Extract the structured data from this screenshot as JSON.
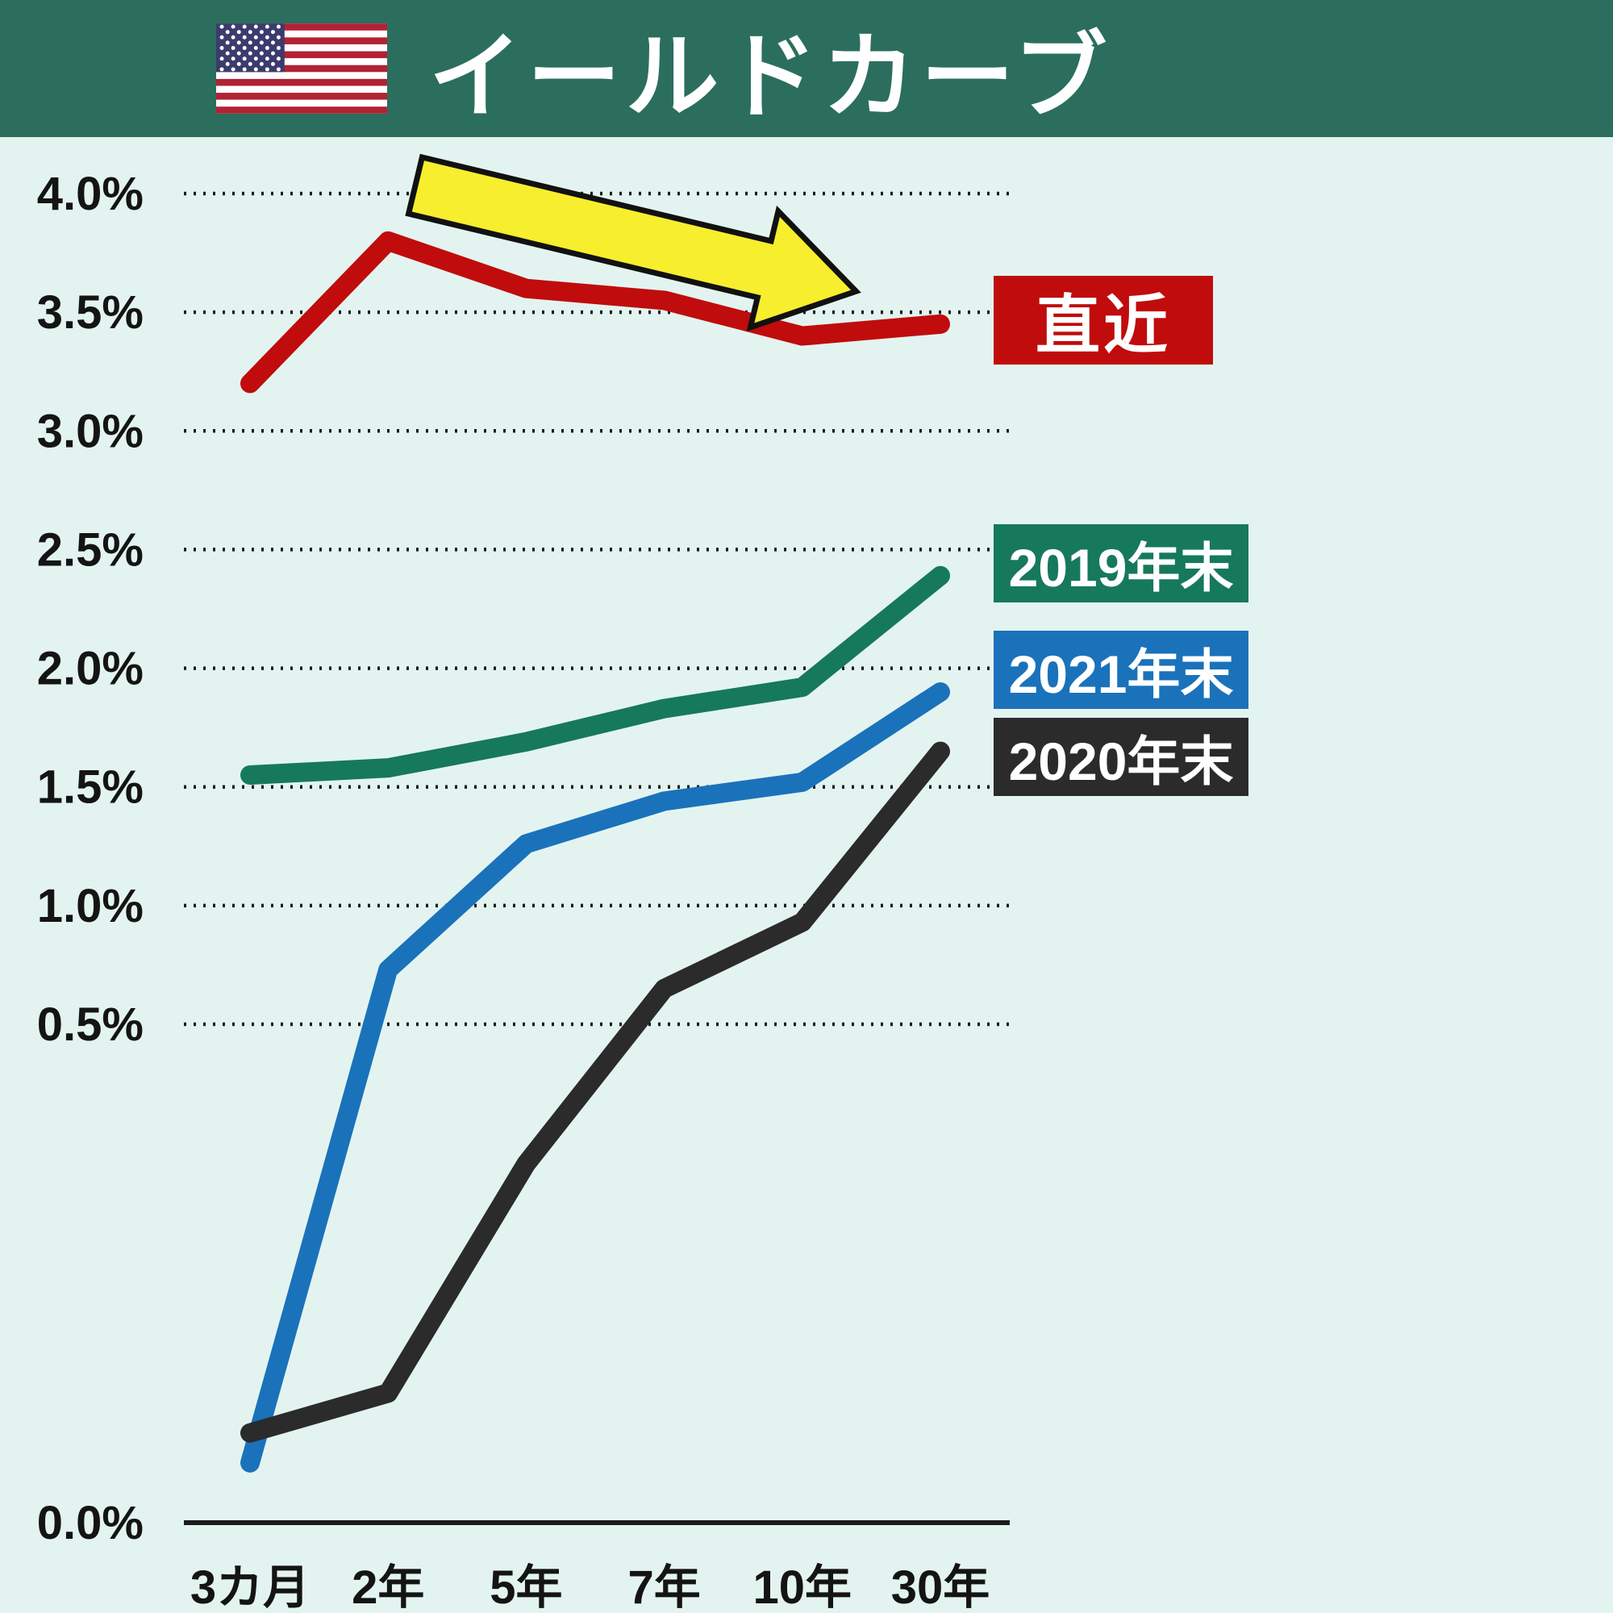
{
  "header": {
    "title": "イールドカーブ",
    "flag_icon": "us-flag-icon",
    "background_color": "#2b6e5e"
  },
  "chart_data": {
    "type": "line",
    "title": "イールドカーブ",
    "unit": "%",
    "categories": [
      "3カ月",
      "2年",
      "5年",
      "7年",
      "10年",
      "30年"
    ],
    "yticks": [
      {
        "label": "4.0%",
        "value": 4.0
      },
      {
        "label": "3.5%",
        "value": 3.5
      },
      {
        "label": "3.0%",
        "value": 3.0
      },
      {
        "label": "2.5%",
        "value": 2.5
      },
      {
        "label": "2.0%",
        "value": 2.0
      },
      {
        "label": "1.5%",
        "value": 1.5
      },
      {
        "label": "1.0%",
        "value": 1.0
      },
      {
        "label": "0.5%",
        "value": 0.5
      },
      {
        "label": "0.0%",
        "value": 0.0
      }
    ],
    "ylim": [
      0,
      4.25
    ],
    "grid": "dotted-horizontal",
    "legend_position": "right",
    "series": [
      {
        "id": "chokkin",
        "name": "直近",
        "color": "#c00c0c",
        "values": [
          3.2,
          3.8,
          3.6,
          3.55,
          3.4,
          3.45
        ]
      },
      {
        "id": "y2019",
        "name": "2019年末",
        "color": "#16795b",
        "values": [
          1.55,
          1.58,
          1.69,
          1.83,
          1.92,
          2.39
        ]
      },
      {
        "id": "y2021",
        "name": "2021年末",
        "color": "#1a72bb",
        "values": [
          0.06,
          0.73,
          1.26,
          1.44,
          1.52,
          1.9
        ]
      },
      {
        "id": "y2020",
        "name": "2020年末",
        "color": "#2b2b2b",
        "values": [
          0.09,
          0.13,
          0.36,
          0.65,
          0.93,
          1.65
        ]
      }
    ],
    "annotations": [
      {
        "type": "arrow",
        "direction": "down-right",
        "color": "#f7ee2e",
        "outline": "#111111"
      }
    ]
  }
}
